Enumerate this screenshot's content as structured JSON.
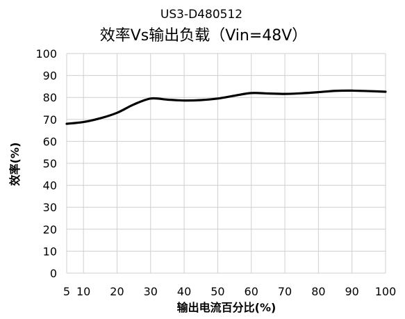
{
  "chart_data": {
    "type": "line",
    "title": "效率Vs输出负载（Vin=48V）",
    "subtitle": "US3-D480512",
    "xlabel": "输出电流百分比(%)",
    "ylabel": "效率(%)",
    "xlim": [
      5,
      100
    ],
    "ylim": [
      0,
      100
    ],
    "x_ticks": [
      5,
      10,
      20,
      30,
      40,
      50,
      60,
      70,
      80,
      90,
      100
    ],
    "y_ticks": [
      0,
      10,
      20,
      30,
      40,
      50,
      60,
      70,
      80,
      90,
      100
    ],
    "grid": true,
    "legend": "none",
    "series": [
      {
        "color": "#000000",
        "x": [
          5,
          10,
          15,
          20,
          25,
          30,
          35,
          40,
          45,
          50,
          55,
          60,
          65,
          70,
          75,
          80,
          85,
          90,
          95,
          100
        ],
        "y": [
          68,
          68.8,
          70.5,
          73,
          76.8,
          79.5,
          79,
          78.6,
          78.8,
          79.5,
          80.8,
          82,
          81.8,
          81.6,
          81.9,
          82.4,
          83,
          83.1,
          82.9,
          82.6
        ]
      }
    ]
  }
}
